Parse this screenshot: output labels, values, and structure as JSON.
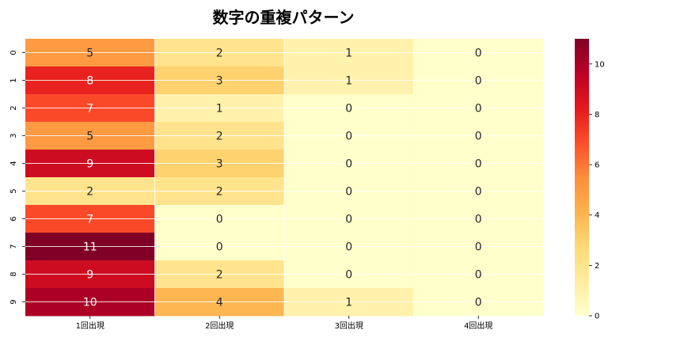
{
  "chart_data": {
    "type": "heatmap",
    "title": "数字の重複パターン",
    "xlabel": "",
    "ylabel": "",
    "x_categories": [
      "1回出現",
      "2回出現",
      "3回出現",
      "4回出現"
    ],
    "y_categories": [
      "0",
      "1",
      "2",
      "3",
      "4",
      "5",
      "6",
      "7",
      "8",
      "9"
    ],
    "values": [
      [
        5,
        2,
        1,
        0
      ],
      [
        8,
        3,
        1,
        0
      ],
      [
        7,
        1,
        0,
        0
      ],
      [
        5,
        2,
        0,
        0
      ],
      [
        9,
        3,
        0,
        0
      ],
      [
        2,
        2,
        0,
        0
      ],
      [
        7,
        0,
        0,
        0
      ],
      [
        11,
        0,
        0,
        0
      ],
      [
        9,
        2,
        0,
        0
      ],
      [
        10,
        4,
        1,
        0
      ]
    ],
    "annotated": true,
    "grid": true,
    "colormap": "YlOrRd",
    "colorbar": {
      "range": [
        0,
        11
      ],
      "ticks": [
        0,
        2,
        4,
        6,
        8,
        10
      ],
      "stops": [
        "#ffffcc",
        "#ffeda0",
        "#fed976",
        "#feb24c",
        "#fd8d3c",
        "#fc4e2a",
        "#e31a1c",
        "#bd0026",
        "#800026"
      ]
    }
  }
}
